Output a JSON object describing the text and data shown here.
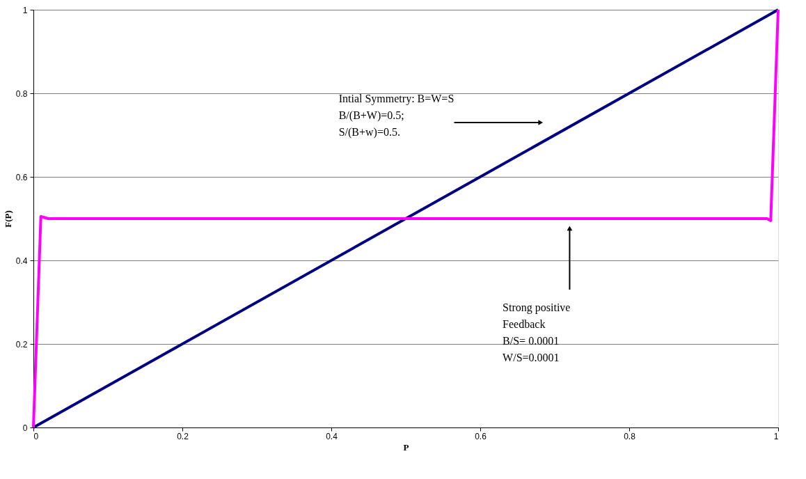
{
  "chart_data": {
    "type": "line",
    "xlabel": "P",
    "ylabel": "F(P)",
    "xlim": [
      0,
      1
    ],
    "ylim": [
      0,
      1
    ],
    "xticks": [
      0,
      0.2,
      0.4,
      0.6,
      0.8,
      1
    ],
    "yticks": [
      0,
      0.2,
      0.4,
      0.6,
      0.8,
      1
    ],
    "grid": "y",
    "marker": "none",
    "line_style": "solid",
    "series": [
      {
        "color": "#000080",
        "x": [
          0,
          1
        ],
        "values": [
          0,
          1
        ]
      },
      {
        "color": "#ff00ff",
        "x": [
          0,
          0.01,
          0.02,
          0.5,
          0.985,
          0.99,
          1
        ],
        "values": [
          0,
          0.505,
          0.5,
          0.5,
          0.5,
          0.495,
          1
        ]
      }
    ],
    "annotations": [
      "Intial Symmetry: B=W=S\nB/(B+W)=0.5;\nS/(B+w)=0.5.",
      "Strong positive\nFeedback\nB/S= 0.0001\nW/S=0.0001"
    ]
  }
}
